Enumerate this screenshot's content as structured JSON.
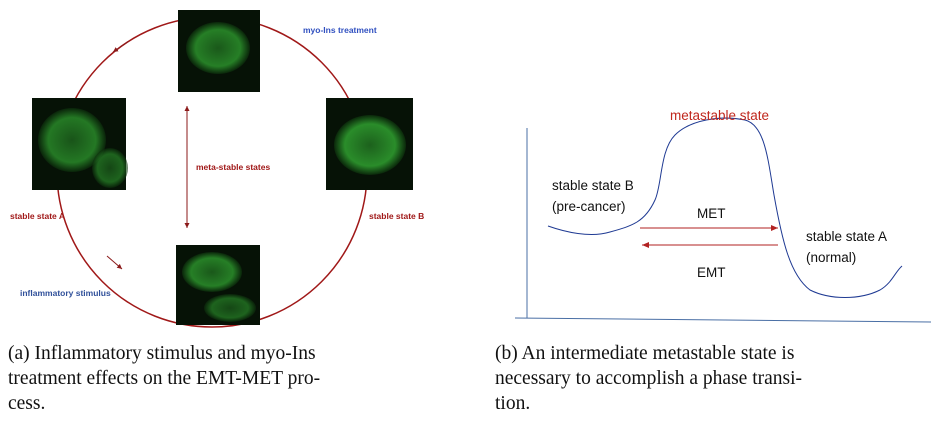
{
  "figure": {
    "subfigures": [
      {
        "labels": {
          "top": "myo-Ins treatment",
          "center": "meta-stable states",
          "left": "stable state A",
          "right": "stable state B",
          "bottom": "inflammatory stimulus"
        },
        "caption": [
          "(a) Inflammatory stimulus and myo-Ins",
          "treatment effects on the EMT-MET pro-",
          "cess."
        ]
      },
      {
        "labels": {
          "top": "metastable state",
          "left": [
            "stable state B",
            "(pre-cancer)"
          ],
          "forward": "MET",
          "backward": "EMT",
          "right": [
            "stable state A",
            "(normal)"
          ]
        },
        "caption": [
          "(b) An intermediate metastable state is",
          "necessary to accomplish a phase transi-",
          "tion."
        ]
      }
    ]
  }
}
